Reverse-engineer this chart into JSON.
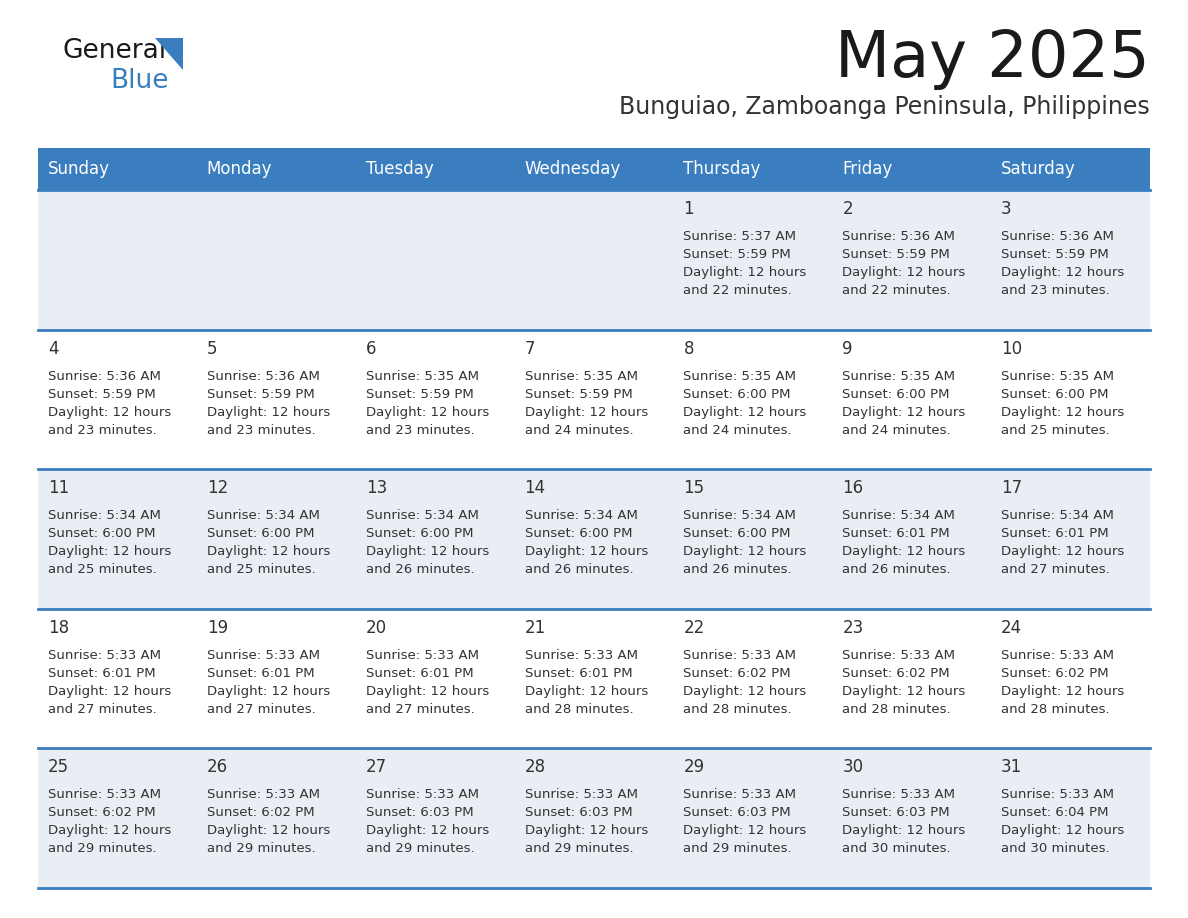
{
  "title": "May 2025",
  "subtitle": "Bunguiao, Zamboanga Peninsula, Philippines",
  "days_of_week": [
    "Sunday",
    "Monday",
    "Tuesday",
    "Wednesday",
    "Thursday",
    "Friday",
    "Saturday"
  ],
  "header_bg": "#3a7ebf",
  "header_text": "#ffffff",
  "row_bg_light": "#e8eef4",
  "row_bg_white": "#ffffff",
  "cell_text_color": "#333333",
  "day_num_color": "#333333",
  "separator_color": "#3a7ebf",
  "grid_color": "#3a7ebf",
  "calendar_data": [
    [
      {
        "day": null,
        "sunrise": null,
        "sunset": null,
        "daylight": null
      },
      {
        "day": null,
        "sunrise": null,
        "sunset": null,
        "daylight": null
      },
      {
        "day": null,
        "sunrise": null,
        "sunset": null,
        "daylight": null
      },
      {
        "day": null,
        "sunrise": null,
        "sunset": null,
        "daylight": null
      },
      {
        "day": "1",
        "sunrise": "5:37 AM",
        "sunset": "5:59 PM",
        "daylight": "12 hours and 22 minutes."
      },
      {
        "day": "2",
        "sunrise": "5:36 AM",
        "sunset": "5:59 PM",
        "daylight": "12 hours and 22 minutes."
      },
      {
        "day": "3",
        "sunrise": "5:36 AM",
        "sunset": "5:59 PM",
        "daylight": "12 hours and 23 minutes."
      }
    ],
    [
      {
        "day": "4",
        "sunrise": "5:36 AM",
        "sunset": "5:59 PM",
        "daylight": "12 hours and 23 minutes."
      },
      {
        "day": "5",
        "sunrise": "5:36 AM",
        "sunset": "5:59 PM",
        "daylight": "12 hours and 23 minutes."
      },
      {
        "day": "6",
        "sunrise": "5:35 AM",
        "sunset": "5:59 PM",
        "daylight": "12 hours and 23 minutes."
      },
      {
        "day": "7",
        "sunrise": "5:35 AM",
        "sunset": "5:59 PM",
        "daylight": "12 hours and 24 minutes."
      },
      {
        "day": "8",
        "sunrise": "5:35 AM",
        "sunset": "6:00 PM",
        "daylight": "12 hours and 24 minutes."
      },
      {
        "day": "9",
        "sunrise": "5:35 AM",
        "sunset": "6:00 PM",
        "daylight": "12 hours and 24 minutes."
      },
      {
        "day": "10",
        "sunrise": "5:35 AM",
        "sunset": "6:00 PM",
        "daylight": "12 hours and 25 minutes."
      }
    ],
    [
      {
        "day": "11",
        "sunrise": "5:34 AM",
        "sunset": "6:00 PM",
        "daylight": "12 hours and 25 minutes."
      },
      {
        "day": "12",
        "sunrise": "5:34 AM",
        "sunset": "6:00 PM",
        "daylight": "12 hours and 25 minutes."
      },
      {
        "day": "13",
        "sunrise": "5:34 AM",
        "sunset": "6:00 PM",
        "daylight": "12 hours and 26 minutes."
      },
      {
        "day": "14",
        "sunrise": "5:34 AM",
        "sunset": "6:00 PM",
        "daylight": "12 hours and 26 minutes."
      },
      {
        "day": "15",
        "sunrise": "5:34 AM",
        "sunset": "6:00 PM",
        "daylight": "12 hours and 26 minutes."
      },
      {
        "day": "16",
        "sunrise": "5:34 AM",
        "sunset": "6:01 PM",
        "daylight": "12 hours and 26 minutes."
      },
      {
        "day": "17",
        "sunrise": "5:34 AM",
        "sunset": "6:01 PM",
        "daylight": "12 hours and 27 minutes."
      }
    ],
    [
      {
        "day": "18",
        "sunrise": "5:33 AM",
        "sunset": "6:01 PM",
        "daylight": "12 hours and 27 minutes."
      },
      {
        "day": "19",
        "sunrise": "5:33 AM",
        "sunset": "6:01 PM",
        "daylight": "12 hours and 27 minutes."
      },
      {
        "day": "20",
        "sunrise": "5:33 AM",
        "sunset": "6:01 PM",
        "daylight": "12 hours and 27 minutes."
      },
      {
        "day": "21",
        "sunrise": "5:33 AM",
        "sunset": "6:01 PM",
        "daylight": "12 hours and 28 minutes."
      },
      {
        "day": "22",
        "sunrise": "5:33 AM",
        "sunset": "6:02 PM",
        "daylight": "12 hours and 28 minutes."
      },
      {
        "day": "23",
        "sunrise": "5:33 AM",
        "sunset": "6:02 PM",
        "daylight": "12 hours and 28 minutes."
      },
      {
        "day": "24",
        "sunrise": "5:33 AM",
        "sunset": "6:02 PM",
        "daylight": "12 hours and 28 minutes."
      }
    ],
    [
      {
        "day": "25",
        "sunrise": "5:33 AM",
        "sunset": "6:02 PM",
        "daylight": "12 hours and 29 minutes."
      },
      {
        "day": "26",
        "sunrise": "5:33 AM",
        "sunset": "6:02 PM",
        "daylight": "12 hours and 29 minutes."
      },
      {
        "day": "27",
        "sunrise": "5:33 AM",
        "sunset": "6:03 PM",
        "daylight": "12 hours and 29 minutes."
      },
      {
        "day": "28",
        "sunrise": "5:33 AM",
        "sunset": "6:03 PM",
        "daylight": "12 hours and 29 minutes."
      },
      {
        "day": "29",
        "sunrise": "5:33 AM",
        "sunset": "6:03 PM",
        "daylight": "12 hours and 29 minutes."
      },
      {
        "day": "30",
        "sunrise": "5:33 AM",
        "sunset": "6:03 PM",
        "daylight": "12 hours and 30 minutes."
      },
      {
        "day": "31",
        "sunrise": "5:33 AM",
        "sunset": "6:04 PM",
        "daylight": "12 hours and 30 minutes."
      }
    ]
  ]
}
